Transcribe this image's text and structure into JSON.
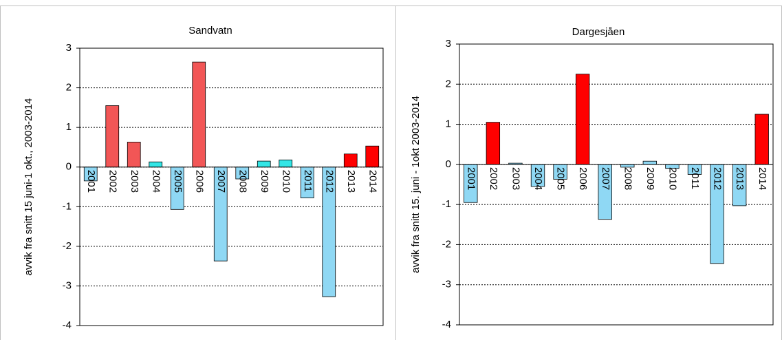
{
  "chart_data": [
    {
      "type": "bar",
      "title": "Sandvatn",
      "y_label": "avvik fra snitt  15 juni-1 okt., 2003-2014",
      "categories": [
        "2001",
        "2002",
        "2003",
        "2004",
        "2005",
        "2006",
        "2007",
        "2008",
        "2009",
        "2010",
        "2011",
        "2012",
        "2013",
        "2014"
      ],
      "values": [
        -0.35,
        1.55,
        0.63,
        0.13,
        -1.07,
        2.65,
        -2.37,
        -0.3,
        0.15,
        0.18,
        -0.78,
        -3.27,
        0.33,
        0.53
      ],
      "colors": [
        "#8fd8f4",
        "#f25656",
        "#f25656",
        "#33e6e6",
        "#8fd8f4",
        "#f25656",
        "#8fd8f4",
        "#8fd8f4",
        "#33e6e6",
        "#33e6e6",
        "#8fd8f4",
        "#8fd8f4",
        "#ff0000",
        "#ff0000"
      ],
      "ylim": [
        -4,
        3
      ],
      "yticks": [
        -4,
        -3,
        -2,
        -1,
        0,
        1,
        2,
        3
      ],
      "grid": true
    },
    {
      "type": "bar",
      "title": "Dargesjåen",
      "y_label": "avvik fra snitt 15. juni - 1okt  2003-2014",
      "categories": [
        "2001",
        "2002",
        "2003",
        "2004",
        "2005",
        "2006",
        "2007",
        "2008",
        "2009",
        "2010",
        "2011",
        "2012",
        "2013",
        "2014"
      ],
      "values": [
        -0.95,
        1.05,
        0.03,
        -0.55,
        -0.37,
        2.25,
        -1.37,
        -0.07,
        0.08,
        -0.1,
        -0.25,
        -2.47,
        -1.03,
        1.25
      ],
      "colors": [
        "#8fd8f4",
        "#ff0000",
        "#8fd8f4",
        "#8fd8f4",
        "#8fd8f4",
        "#ff0000",
        "#8fd8f4",
        "#8fd8f4",
        "#8fd8f4",
        "#8fd8f4",
        "#8fd8f4",
        "#8fd8f4",
        "#8fd8f4",
        "#ff0000"
      ],
      "ylim": [
        -4,
        3
      ],
      "yticks": [
        -4,
        -3,
        -2,
        -1,
        0,
        1,
        2,
        3
      ],
      "grid": true
    }
  ]
}
